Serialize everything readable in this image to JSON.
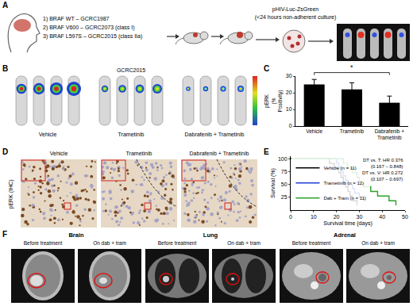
{
  "panel_labels": [
    "A",
    "B",
    "C",
    "D",
    "E",
    "F"
  ],
  "schematic": {
    "lines": [
      "1) BRAF WT – GCRC1987",
      "2) BRAF V600 – GCRC2073 (class I)",
      "3) BRAF L597S – GCRC2015 (class IIa)"
    ],
    "construct": "pHIV-Luc-ZsGreen",
    "culture": "(<24 hours non-adherent culture)"
  },
  "bli": {
    "model": "GCRC2015",
    "groups": [
      "Vehicle",
      "Trametinib",
      "Dabrafenib + Trametinib"
    ]
  },
  "ihc": {
    "stain": "pERK (IHC)",
    "groups": [
      "Vehicle",
      "Trametinib",
      "Dabrafenib + Trametinib"
    ]
  },
  "imaging": {
    "sites": [
      {
        "name": "Brain",
        "views": [
          "Before treatment",
          "On dab + tram"
        ]
      },
      {
        "name": "Lung",
        "views": [
          "Before treatment",
          "On dab + tram"
        ]
      },
      {
        "name": "Adrenal",
        "views": [
          "Before treatment",
          "On dab + tram"
        ]
      }
    ]
  },
  "chart_data": [
    {
      "type": "bar",
      "ylabel": "pERK (% Positivity)",
      "categories": [
        "Vehicle",
        "Trametinib",
        "Dabrafenib + Trametinib"
      ],
      "values": [
        25,
        22,
        14
      ],
      "errors": [
        3,
        4,
        4
      ],
      "color": "#000000",
      "ylim": [
        0,
        30
      ],
      "yticks": [
        0,
        10,
        20,
        30
      ],
      "grid": false,
      "annotations": [
        "*"
      ]
    },
    {
      "type": "line",
      "line_style": "step",
      "xlabel": "Survival time (days)",
      "ylabel": "Survival (%)",
      "xlim": [
        0,
        50
      ],
      "xticks": [
        0,
        10,
        20,
        30,
        40,
        50
      ],
      "ylim": [
        0,
        105
      ],
      "yticks": [
        25,
        50,
        75,
        100
      ],
      "grid": false,
      "legend": "lower left",
      "series": [
        {
          "name": "Vehicle (n = 11)",
          "color": "#000000",
          "x": [
            0,
            17,
            19,
            21,
            22,
            23,
            24,
            25,
            26,
            27,
            29
          ],
          "values": [
            100,
            90.9,
            81.8,
            72.7,
            63.6,
            54.5,
            45.5,
            36.4,
            27.3,
            18.2,
            9.1
          ]
        },
        {
          "name": "Trametinib (n = 12)",
          "color": "#1f3fd6",
          "x": [
            0,
            20,
            21,
            22,
            23,
            24,
            25,
            27,
            28,
            30,
            32
          ],
          "values": [
            100,
            91.7,
            83.3,
            75,
            66.7,
            58.3,
            50,
            41.7,
            33.3,
            25,
            16.7
          ]
        },
        {
          "name": "Dab + Tram (n = 11)",
          "color": "#2ca02c",
          "x": [
            0,
            23,
            25,
            27,
            29,
            30,
            32,
            35,
            38,
            43,
            46
          ],
          "values": [
            100,
            90.9,
            81.8,
            72.7,
            63.6,
            54.5,
            45.5,
            36.4,
            27.3,
            18.2,
            9.1
          ]
        }
      ],
      "annotations": [
        [
          "DT vs. T: HR 0.376",
          "(0.167 – 0.848)"
        ],
        [
          "DT vs. V: HR 0.272",
          "(0.107 – 0.697)"
        ]
      ]
    }
  ]
}
